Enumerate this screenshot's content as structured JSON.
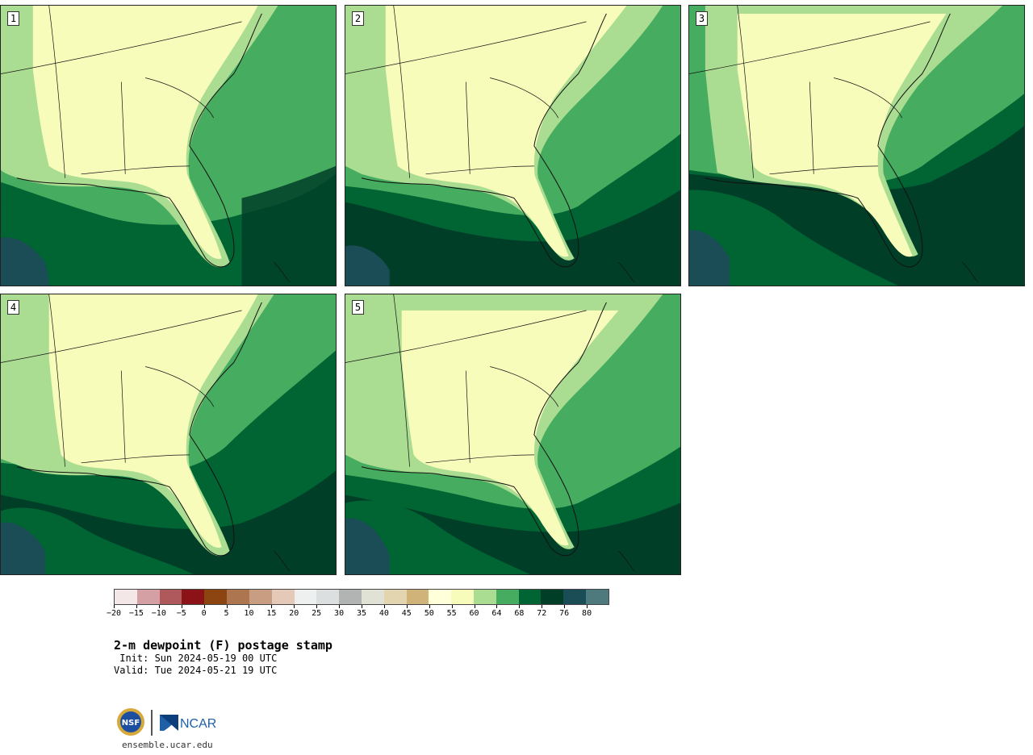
{
  "panels": [
    {
      "label": "1"
    },
    {
      "label": "2"
    },
    {
      "label": "3"
    },
    {
      "label": "4"
    },
    {
      "label": "5"
    }
  ],
  "colorbar": {
    "colors": [
      "#f4e7e7",
      "#d4a0a3",
      "#b0595c",
      "#8b1217",
      "#8c4510",
      "#ae7650",
      "#c89d81",
      "#e4c8b8",
      "#eef0f0",
      "#dcdfdf",
      "#b2b4b4",
      "#e0e2d6",
      "#e4d5b1",
      "#cfb379",
      "#ffffda",
      "#f7fcbb",
      "#aadc91",
      "#46ac5f",
      "#006433",
      "#003e28",
      "#1b4d56",
      "#4f7a7d"
    ],
    "tick_labels": [
      "−20",
      "−15",
      "−10",
      "−5",
      "0",
      "5",
      "10",
      "15",
      "20",
      "25",
      "30",
      "35",
      "40",
      "45",
      "50",
      "55",
      "60",
      "64",
      "68",
      "72",
      "76",
      "80"
    ]
  },
  "title": "2-m dewpoint (F) postage stamp",
  "init": " Init: Sun 2024-05-19 00 UTC",
  "valid": "Valid: Tue 2024-05-21 19 UTC",
  "logo": {
    "nsf_text": "NSF",
    "ncar_text": "NCAR"
  },
  "url": "ensemble.ucar.edu"
}
